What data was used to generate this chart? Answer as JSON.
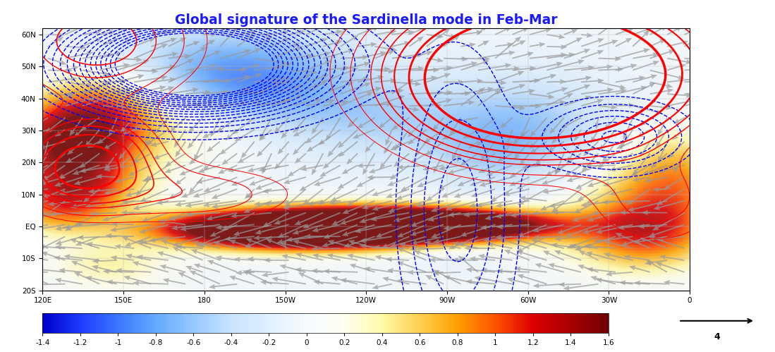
{
  "title": "Global signature of the Sardinella mode in Feb-Mar",
  "title_color": "#1a1aff",
  "map_lon_min": 120,
  "map_lon_max": 360,
  "map_lat_min": -20,
  "map_lat_max": 62,
  "lon_ticks": [
    120,
    150,
    180,
    210,
    240,
    270,
    300,
    330,
    360
  ],
  "lon_labels": [
    "120E",
    "150E",
    "180",
    "150W",
    "120W",
    "90W",
    "60W",
    "30W",
    "0"
  ],
  "lat_ticks": [
    -20,
    -10,
    0,
    10,
    20,
    30,
    40,
    50,
    60
  ],
  "lat_labels": [
    "20S",
    "10S",
    "EQ",
    "10N",
    "20N",
    "30N",
    "40N",
    "50N",
    "60N"
  ],
  "colorbar_ticks": [
    -1.4,
    -1.2,
    -1.0,
    -0.8,
    -0.6,
    -0.4,
    -0.2,
    0,
    0.2,
    0.4,
    0.6,
    0.8,
    1.0,
    1.2,
    1.4,
    1.6
  ],
  "colorbar_colors": [
    "#0000cd",
    "#1e3cff",
    "#3c78ff",
    "#64aaff",
    "#96c8ff",
    "#c8e4ff",
    "#dff0ff",
    "#f5fbff",
    "#fffff0",
    "#fffaaa",
    "#ffd050",
    "#ffa000",
    "#ff5500",
    "#dd0000",
    "#aa0000",
    "#700000"
  ],
  "land_color": "#aaaaaa",
  "ocean_bg_color": "#d8d8d8",
  "fig_bg_color": "#ffffff",
  "wind_arrow_label": "4",
  "grid_color": "#bbbbbb",
  "figsize": [
    10.99,
    4.99
  ],
  "dpi": 100
}
